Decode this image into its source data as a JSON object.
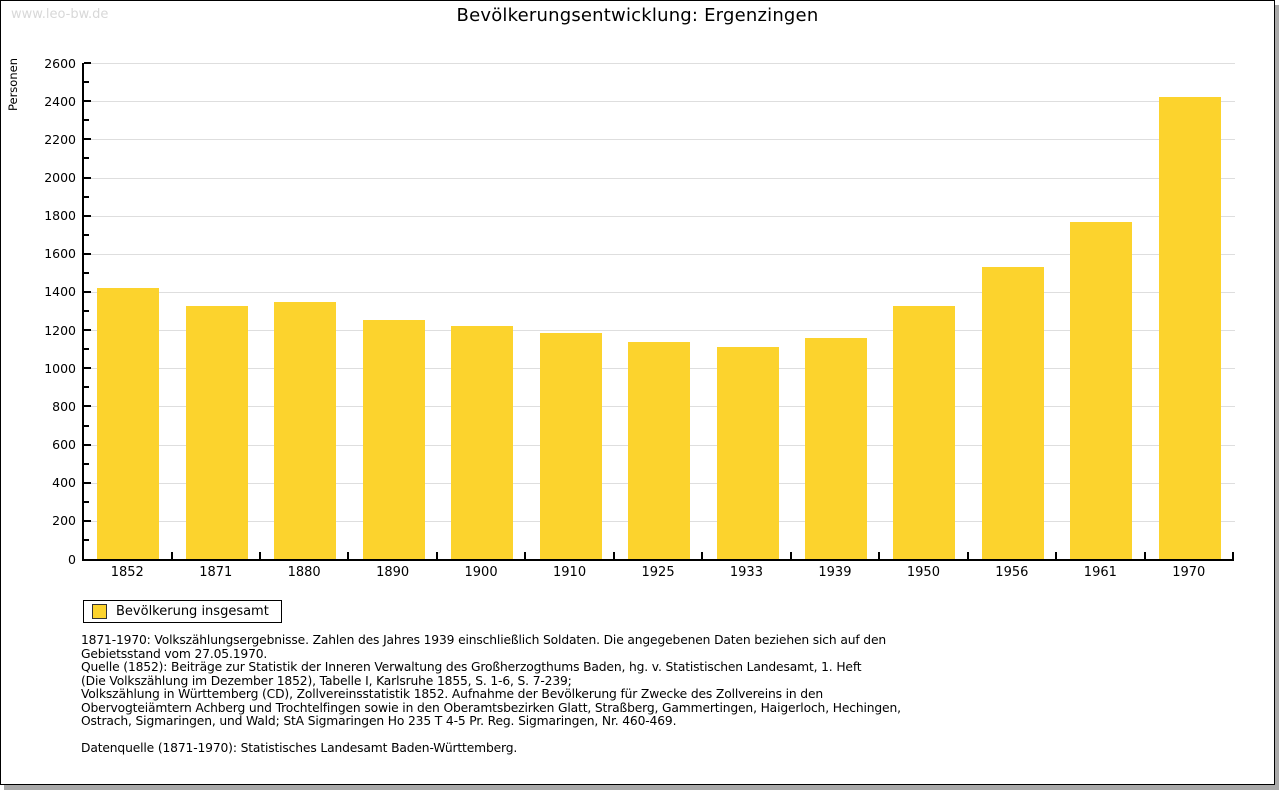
{
  "page": {
    "watermark": "www.leo-bw.de",
    "title": "Bevölkerungsentwicklung: Ergenzingen"
  },
  "chart_data": {
    "type": "bar",
    "title": "Bevölkerungsentwicklung: Ergenzingen",
    "xlabel": "",
    "ylabel": "Personen",
    "categories": [
      "1852",
      "1871",
      "1880",
      "1890",
      "1900",
      "1910",
      "1925",
      "1933",
      "1939",
      "1950",
      "1956",
      "1961",
      "1970"
    ],
    "values": [
      1420,
      1325,
      1350,
      1252,
      1220,
      1186,
      1136,
      1112,
      1157,
      1328,
      1532,
      1765,
      2420
    ],
    "series_name": "Bevölkerung insgesamt",
    "ylim": [
      0,
      2600
    ],
    "ytick_step": 200,
    "minor_tick_step": 100,
    "grid": true,
    "legend_position": "bottom-left",
    "bar_color": "#FCD32D",
    "grid_color": "#DEDEDE",
    "axis_color": "#000000",
    "watermark_color": "#D8D8D8"
  },
  "legend": {
    "label": "Bevölkerung insgesamt",
    "swatch_color": "#FCD32D"
  },
  "footnotes": {
    "lines": [
      "1871-1970: Volkszählungsergebnisse. Zahlen des Jahres 1939 einschließlich Soldaten. Die angegebenen Daten beziehen sich auf den",
      "Gebietsstand vom 27.05.1970.",
      "Quelle (1852): Beiträge zur Statistik der Inneren Verwaltung des Großherzogthums Baden, hg. v. Statistischen Landesamt, 1. Heft",
      "(Die Volkszählung im Dezember 1852), Tabelle I, Karlsruhe 1855, S. 1-6, S. 7-239;",
      "Volkszählung in Württemberg (CD), Zollvereinsstatistik 1852. Aufnahme der Bevölkerung für Zwecke des Zollvereins in den",
      "Obervogteiämtern Achberg und Trochtelfingen sowie in den Oberamtsbezirken Glatt, Straßberg, Gammertingen, Haigerloch, Hechingen,",
      "Ostrach, Sigmaringen, und Wald; StA Sigmaringen Ho 235 T 4-5 Pr. Reg. Sigmaringen, Nr. 460-469."
    ],
    "datasource": "Datenquelle (1871-1970): Statistisches Landesamt Baden-Württemberg."
  }
}
